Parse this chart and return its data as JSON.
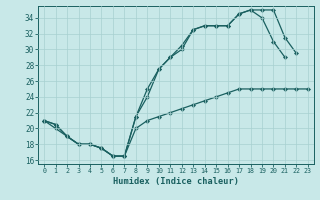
{
  "xlabel": "Humidex (Indice chaleur)",
  "bg_color": "#c8e8e8",
  "grid_color": "#a8d0d0",
  "line_color": "#1a6060",
  "xlim": [
    -0.5,
    23.5
  ],
  "ylim": [
    15.5,
    35.5
  ],
  "xticks": [
    0,
    1,
    2,
    3,
    4,
    5,
    6,
    7,
    8,
    9,
    10,
    11,
    12,
    13,
    14,
    15,
    16,
    17,
    18,
    19,
    20,
    21,
    22,
    23
  ],
  "yticks": [
    16,
    18,
    20,
    22,
    24,
    26,
    28,
    30,
    32,
    34
  ],
  "line1_x": [
    0,
    1,
    2,
    3,
    4,
    5,
    6,
    7,
    8,
    9,
    10,
    11,
    12,
    13,
    14,
    15,
    16,
    17,
    18,
    19,
    20,
    21
  ],
  "line1_y": [
    21,
    20.5,
    19,
    18,
    18,
    17.5,
    16.5,
    16.5,
    21.5,
    25,
    27.5,
    29,
    30,
    32.5,
    33,
    33,
    33,
    34.5,
    35,
    34,
    31,
    29
  ],
  "line2_x": [
    0,
    1,
    2,
    3,
    4,
    5,
    6,
    7,
    8,
    9,
    10,
    11,
    12,
    13,
    14,
    15,
    16,
    17,
    18,
    19,
    20,
    21,
    22
  ],
  "line2_y": [
    21,
    20.5,
    19,
    18,
    18,
    17.5,
    16.5,
    16.5,
    21.5,
    24,
    27.5,
    29,
    30.5,
    32.5,
    33,
    33,
    33,
    34.5,
    35,
    35,
    35,
    31.5,
    29.5
  ],
  "line3_x": [
    0,
    1,
    2,
    3,
    4,
    5,
    6,
    7,
    8,
    9,
    10,
    11,
    12,
    13,
    14,
    15,
    16,
    17,
    18,
    19,
    20,
    21,
    22,
    23
  ],
  "line3_y": [
    21,
    20,
    19,
    18,
    18,
    17.5,
    16.5,
    16.5,
    20,
    21,
    21.5,
    22,
    22.5,
    23,
    23.5,
    24,
    24.5,
    25,
    25,
    25,
    25,
    25,
    25,
    25
  ]
}
